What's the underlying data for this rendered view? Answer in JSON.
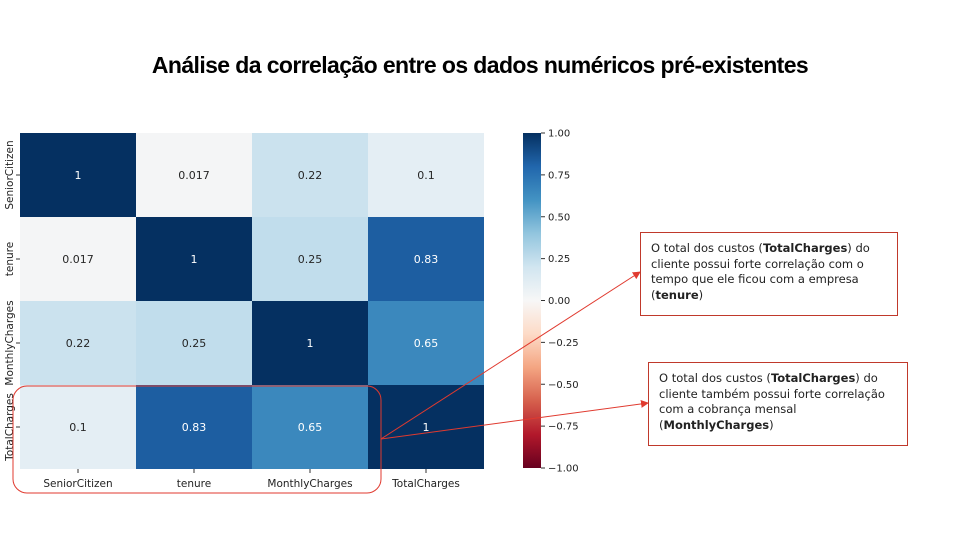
{
  "slide": {
    "title": "Análise da correlação entre os dados numéricos pré-existentes"
  },
  "annotations": [
    {
      "id": "tenure",
      "parts": [
        {
          "text": "O total  dos custos ("
        },
        {
          "text": "TotalCharges",
          "bold": true
        },
        {
          "text": ") do cliente possui forte correlação  com o tempo que ele ficou com a empresa ("
        },
        {
          "text": "tenure",
          "bold": true
        },
        {
          "text": ")"
        }
      ]
    },
    {
      "id": "monthly",
      "parts": [
        {
          "text": "O total  dos custos ("
        },
        {
          "text": "TotalCharges",
          "bold": true
        },
        {
          "text": ") do cliente também possui forte correlação com a cobrança  mensal ("
        },
        {
          "text": "MonthlyCharges",
          "bold": true
        },
        {
          "text": ")"
        }
      ]
    }
  ],
  "colors": {
    "annotation_border": "#c0392b",
    "arrow": "#e03a2f",
    "highlight_box": "#e03a2f"
  },
  "chart_data": {
    "type": "heatmap",
    "title": "",
    "xlabel": "",
    "ylabel": "",
    "x_categories": [
      "SeniorCitizen",
      "tenure",
      "MonthlyCharges",
      "TotalCharges"
    ],
    "y_categories": [
      "SeniorCitizen",
      "tenure",
      "MonthlyCharges",
      "TotalCharges"
    ],
    "values": [
      [
        1,
        0.017,
        0.22,
        0.1
      ],
      [
        0.017,
        1,
        0.25,
        0.83
      ],
      [
        0.22,
        0.25,
        1,
        0.65
      ],
      [
        0.1,
        0.83,
        0.65,
        1
      ]
    ],
    "cell_labels": [
      [
        "1",
        "0.017",
        "0.22",
        "0.1"
      ],
      [
        "0.017",
        "1",
        "0.25",
        "0.83"
      ],
      [
        "0.22",
        "0.25",
        "1",
        "0.65"
      ],
      [
        "0.1",
        "0.83",
        "0.65",
        "1"
      ]
    ],
    "colormap": "RdBu",
    "vmin": -1,
    "vmax": 1,
    "colorbar_ticks": [
      1.0,
      0.75,
      0.5,
      0.25,
      0.0,
      -0.25,
      -0.5,
      -0.75,
      -1.0
    ],
    "colorbar_tick_labels": [
      "1.00",
      "0.75",
      "0.50",
      "0.25",
      "0.00",
      "−0.25",
      "−0.50",
      "−0.75",
      "−1.00"
    ],
    "annotated": true
  }
}
